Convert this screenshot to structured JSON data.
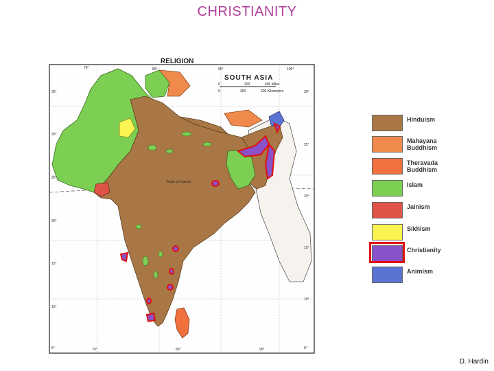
{
  "title": "CHRISTIANITY",
  "credit": "D. Hardin",
  "map": {
    "heading": "RELIGION",
    "subheading": "SOUTH ASIA",
    "scale_miles": [
      "0",
      "200",
      "400 Miles"
    ],
    "scale_km": [
      "0",
      "300",
      "600 Kilometers"
    ],
    "tropic_label": "Tropic of Cancer",
    "top_longitudes": [
      "70°",
      "80°",
      "90°",
      "100°"
    ],
    "bottom_longitudes": [
      "70°",
      "80°",
      "90°"
    ],
    "left_latitudes": [
      "35°",
      "30°",
      "25°",
      "20°",
      "15°",
      "10°",
      "5°"
    ],
    "right_latitudes": [
      "30°",
      "25°",
      "20°",
      "15°",
      "10°",
      "5°"
    ]
  },
  "legend": {
    "items": [
      {
        "label": "Hinduism",
        "color": "#a97745"
      },
      {
        "label": "Mahayana Buddhism",
        "color": "#f08a4c"
      },
      {
        "label": "Theravada Buddhism",
        "color": "#f0703e"
      },
      {
        "label": "Islam",
        "color": "#7ccf52"
      },
      {
        "label": "Jainism",
        "color": "#e05448"
      },
      {
        "label": "Sikhism",
        "color": "#fbf451"
      },
      {
        "label": "Christianity",
        "color": "#8a52c8"
      },
      {
        "label": "Animism",
        "color": "#5a74d2"
      }
    ],
    "highlighted": "Christianity"
  }
}
